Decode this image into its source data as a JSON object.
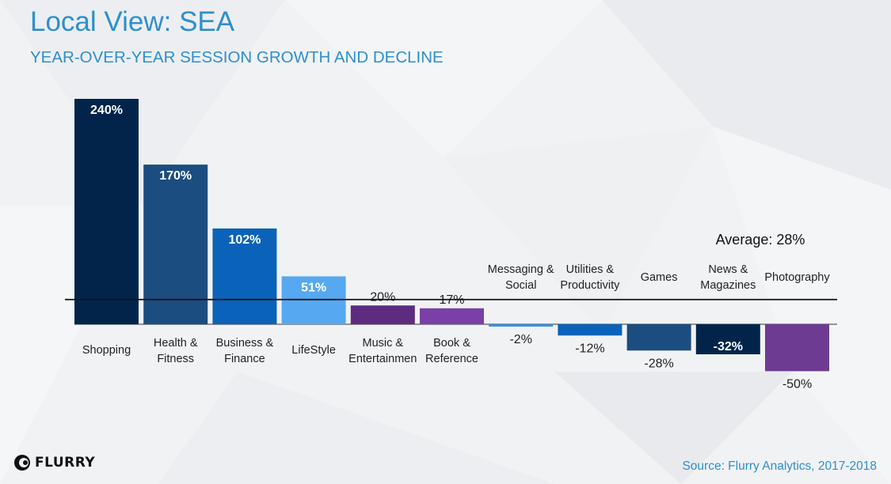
{
  "title": "Local View: SEA",
  "subtitle": "YEAR-OVER-YEAR SESSION GROWTH AND DECLINE",
  "source": "Source: Flurry Analytics, 2017-2018",
  "logo_text": "FLURRY",
  "chart_data": {
    "type": "bar",
    "categories": [
      [
        "Shopping"
      ],
      [
        "Health &",
        "Fitness"
      ],
      [
        "Business &",
        "Finance"
      ],
      [
        "LifeStyle"
      ],
      [
        "Music &",
        "Entertainmen"
      ],
      [
        "Book &",
        "Reference"
      ],
      [
        "Messaging &",
        "Social"
      ],
      [
        "Utilities &",
        "Productivity"
      ],
      [
        "Games"
      ],
      [
        "News &",
        "Magazines"
      ],
      [
        "Photography"
      ]
    ],
    "values": [
      240,
      170,
      102,
      51,
      20,
      17,
      -2,
      -12,
      -28,
      -32,
      -50
    ],
    "value_labels": [
      "240%",
      "170%",
      "102%",
      "51%",
      "20%",
      "17%",
      "-2%",
      "-12%",
      "-28%",
      "-32%",
      "-50%"
    ],
    "colors": [
      "#02244b",
      "#1b4d80",
      "#0a63b8",
      "#56a8f0",
      "#5d2c7e",
      "#7b40a8",
      "#3f8edf",
      "#0a63b8",
      "#1b4d80",
      "#02244b",
      "#6e3b92"
    ],
    "average": {
      "value": 28,
      "label": "Average: 28%"
    },
    "ylim": [
      -55,
      250
    ],
    "grid": false
  }
}
